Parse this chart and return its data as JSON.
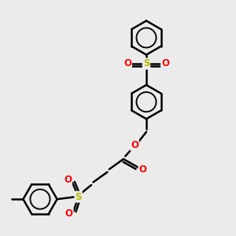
{
  "bg_color": "#ebebeb",
  "bond_color": "#000000",
  "bond_width": 1.8,
  "S_color": "#b8b800",
  "O_color": "#ff0000",
  "figsize": [
    3.0,
    3.0
  ],
  "dpi": 100,
  "xlim": [
    0,
    10
  ],
  "ylim": [
    0,
    10
  ]
}
